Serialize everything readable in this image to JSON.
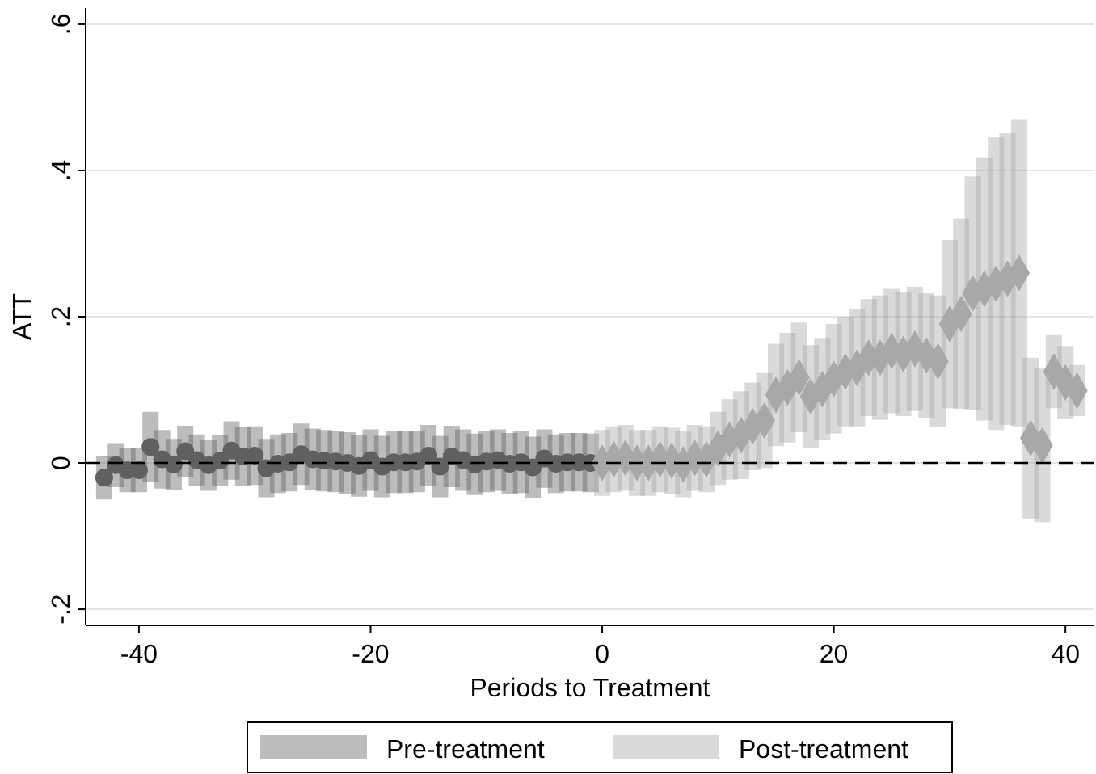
{
  "chart_data": {
    "type": "scatter",
    "xlabel": "Periods to Treatment",
    "ylabel": "ATT",
    "xlim": [
      -44.6,
      42.5
    ],
    "xticks": [
      -40,
      -20,
      0,
      20,
      40
    ],
    "ylim": [
      -0.222,
      0.622
    ],
    "yticks": [
      {
        "value": -0.2,
        "label": "-.2"
      },
      {
        "value": 0,
        "label": "0"
      },
      {
        "value": 0.2,
        "label": ".2"
      },
      {
        "value": 0.4,
        "label": ".4"
      },
      {
        "value": 0.6,
        "label": ".6"
      }
    ],
    "grid": "y",
    "legend": "bottom",
    "ref_lines": [
      {
        "axis": "y",
        "value": 0,
        "color": "#000000",
        "line_style": "dashed"
      }
    ],
    "series": [
      {
        "name": "Pre-treatment",
        "color": "#606060",
        "marker": "circle",
        "x": [
          -43,
          -42,
          -41,
          -40,
          -39,
          -38,
          -37,
          -36,
          -35,
          -34,
          -33,
          -32,
          -31,
          -30,
          -29,
          -28,
          -27,
          -26,
          -25,
          -24,
          -23,
          -22,
          -21,
          -20,
          -19,
          -18,
          -17,
          -16,
          -15,
          -14,
          -13,
          -12,
          -11,
          -10,
          -9,
          -8,
          -7,
          -6,
          -5,
          -4,
          -3,
          -2,
          -1
        ],
        "values": [
          -0.02,
          -0.003,
          -0.01,
          -0.01,
          0.022,
          0.005,
          -0.002,
          0.016,
          0.004,
          -0.003,
          0.003,
          0.017,
          0.009,
          0.01,
          -0.007,
          -0.001,
          0.001,
          0.012,
          0.005,
          0.003,
          0.002,
          0,
          -0.004,
          0.004,
          -0.005,
          0.001,
          0.001,
          0.002,
          0.01,
          -0.005,
          0.009,
          0.004,
          -0.002,
          0.002,
          0.004,
          -0.001,
          0.001,
          -0.006,
          0.006,
          -0.001,
          0.001,
          0.001,
          0
        ],
        "errors": [
          0.03,
          0.03,
          0.03,
          0.03,
          0.048,
          0.04,
          0.035,
          0.035,
          0.035,
          0.035,
          0.035,
          0.04,
          0.04,
          0.04,
          0.04,
          0.04,
          0.04,
          0.042,
          0.042,
          0.042,
          0.042,
          0.042,
          0.042,
          0.042,
          0.042,
          0.042,
          0.042,
          0.042,
          0.042,
          0.042,
          0.042,
          0.042,
          0.042,
          0.042,
          0.042,
          0.042,
          0.042,
          0.042,
          0.04,
          0.04,
          0.04,
          0.04,
          0.04
        ]
      },
      {
        "name": "Post-treatment",
        "color": "#a8a8a8",
        "marker": "diamond",
        "x": [
          0,
          1,
          2,
          3,
          4,
          5,
          6,
          7,
          8,
          9,
          10,
          11,
          12,
          13,
          14,
          15,
          16,
          17,
          18,
          19,
          20,
          21,
          22,
          23,
          24,
          25,
          26,
          27,
          28,
          29,
          30,
          31,
          32,
          33,
          34,
          35,
          36,
          37,
          38,
          39,
          40,
          41
        ],
        "values": [
          0,
          0.005,
          0.007,
          0,
          0,
          0.005,
          0.003,
          -0.002,
          0.007,
          0.005,
          0.02,
          0.032,
          0.038,
          0.05,
          0.058,
          0.093,
          0.103,
          0.117,
          0.091,
          0.101,
          0.115,
          0.125,
          0.13,
          0.144,
          0.144,
          0.153,
          0.149,
          0.156,
          0.147,
          0.139,
          0.19,
          0.204,
          0.232,
          0.238,
          0.245,
          0.252,
          0.26,
          0.034,
          0.024,
          0.125,
          0.11,
          0.099
        ],
        "errors": [
          0.045,
          0.045,
          0.045,
          0.045,
          0.045,
          0.045,
          0.045,
          0.045,
          0.045,
          0.045,
          0.05,
          0.055,
          0.06,
          0.06,
          0.065,
          0.07,
          0.075,
          0.075,
          0.07,
          0.07,
          0.075,
          0.075,
          0.08,
          0.08,
          0.085,
          0.085,
          0.085,
          0.085,
          0.085,
          0.09,
          0.115,
          0.13,
          0.16,
          0.18,
          0.2,
          0.2,
          0.21,
          0.11,
          0.105,
          0.05,
          0.05,
          0.035
        ]
      }
    ]
  }
}
